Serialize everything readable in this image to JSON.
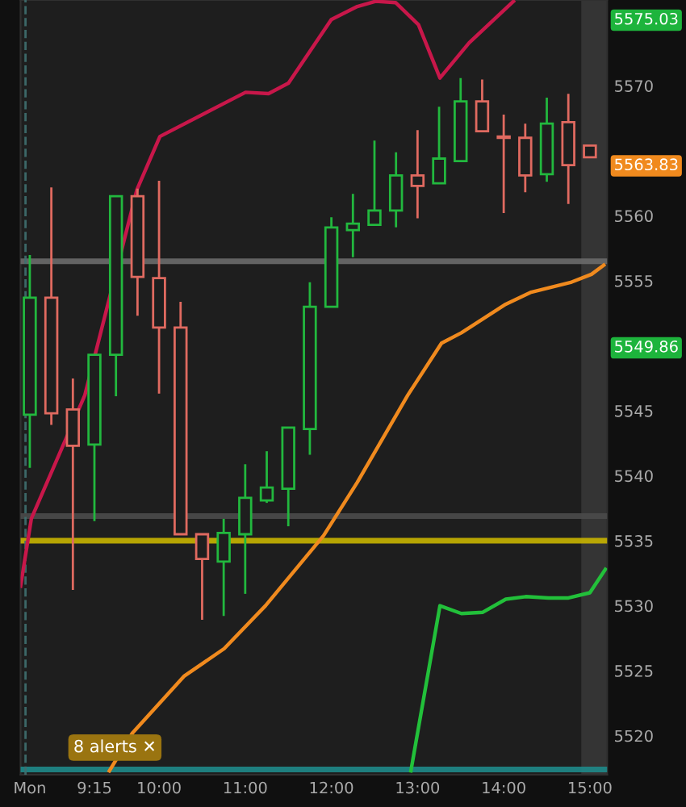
{
  "chart_data": {
    "type": "candlestick",
    "x": [
      8.5,
      8.75,
      9.0,
      9.25,
      9.5,
      9.75,
      10.0,
      10.25,
      10.5,
      10.75,
      11.0,
      11.25,
      11.5,
      11.75,
      12.0,
      12.25,
      12.5,
      12.75,
      13.0,
      13.25,
      13.5,
      13.75,
      14.0,
      14.25,
      14.5,
      14.75,
      15.0
    ],
    "ohlc": [
      [
        5544.7,
        5556.9,
        5540.7,
        5553.7
      ],
      [
        5553.7,
        5562.1,
        5544.0,
        5544.8
      ],
      [
        5545.1,
        5547.4,
        5531.3,
        5542.3
      ],
      [
        5542.4,
        5549.3,
        5536.6,
        5549.3
      ],
      [
        5549.3,
        5561.5,
        5546.2,
        5561.5
      ],
      [
        5561.5,
        5562.0,
        5552.4,
        5555.3
      ],
      [
        5555.2,
        5562.6,
        5546.4,
        5551.4
      ],
      [
        5551.4,
        5553.3,
        5535.5,
        5535.5
      ],
      [
        5535.5,
        5535.5,
        5529.0,
        5533.6
      ],
      [
        5533.4,
        5536.6,
        5529.3,
        5535.6
      ],
      [
        5535.5,
        5540.8,
        5531.0,
        5538.3
      ],
      [
        5538.1,
        5541.8,
        5538.0,
        5539.1
      ],
      [
        5539.0,
        5543.7,
        5536.2,
        5543.7
      ],
      [
        5543.6,
        5554.8,
        5541.7,
        5553.0
      ],
      [
        5553.0,
        5559.8,
        5553.0,
        5559.1
      ],
      [
        5558.9,
        5561.6,
        5556.9,
        5559.4
      ],
      [
        5559.3,
        5565.7,
        5559.3,
        5560.4
      ],
      [
        5560.4,
        5564.8,
        5559.2,
        5563.1
      ],
      [
        5563.1,
        5566.5,
        5559.9,
        5562.3
      ],
      [
        5562.5,
        5568.3,
        5562.5,
        5564.4
      ],
      [
        5564.2,
        5570.5,
        5564.2,
        5568.8
      ],
      [
        5568.8,
        5570.4,
        5566.5,
        5566.5
      ],
      [
        5566.1,
        5567.7,
        5560.3,
        5566.0
      ],
      [
        5566.0,
        5567.0,
        5561.9,
        5563.1
      ],
      [
        5563.2,
        5569.0,
        5562.7,
        5567.1
      ],
      [
        5567.2,
        5569.3,
        5561.0,
        5563.9
      ],
      [
        5565.4,
        5565.4,
        5564.5,
        5564.5
      ]
    ],
    "colors": [
      "#22b83e",
      "#e06a60",
      "#e06a60",
      "#22b83e",
      "#22b83e",
      "#e06a60",
      "#e06a60",
      "#e06a60",
      "#e06a60",
      "#22b83e",
      "#22b83e",
      "#22b83e",
      "#22b83e",
      "#22b83e",
      "#22b83e",
      "#22b83e",
      "#22b83e",
      "#22b83e",
      "#e06a60",
      "#22b83e",
      "#22b83e",
      "#e06a60",
      "#e06a60",
      "#e06a60",
      "#22b83e",
      "#e06a60",
      "#e06a60"
    ],
    "series": [
      {
        "type": "line",
        "color": "#c8174a",
        "x": [
          8.393,
          8.518,
          9.139,
          9.743,
          10.01,
          11.004,
          11.271,
          11.502,
          11.999,
          12.301,
          12.514,
          12.745,
          13.011,
          13.26,
          13.598,
          14.113
        ],
        "values": [
          5531.5,
          5536.7,
          5546.2,
          5562.0,
          5566.1,
          5569.5,
          5569.4,
          5570.2,
          5575.1,
          5576.1,
          5576.5,
          5576.4,
          5574.7,
          5570.6,
          5573.3,
          5576.5
        ]
      },
      {
        "type": "line",
        "color": "#f08a1e",
        "x": [
          9.424,
          9.69,
          10.294,
          10.756,
          11.235,
          11.91,
          12.301,
          12.887,
          13.278,
          13.509,
          14.024,
          14.309,
          14.788,
          15.019,
          15.161
        ],
        "values": [
          5517.3,
          5520.2,
          5524.6,
          5526.7,
          5530.0,
          5535.4,
          5539.5,
          5546.2,
          5550.2,
          5551.0,
          5553.2,
          5554.1,
          5554.9,
          5555.5,
          5556.2
        ]
      },
      {
        "type": "line",
        "color": "#22c03a",
        "x": [
          12.923,
          13.26,
          13.509,
          13.758,
          14.024,
          14.255,
          14.521,
          14.752,
          15.0,
          15.179
        ],
        "values": [
          5517.3,
          5530.0,
          5529.4,
          5529.5,
          5530.5,
          5530.7,
          5530.6,
          5530.6,
          5531.0,
          5532.8
        ]
      }
    ],
    "ref_lines": [
      {
        "axis": "y",
        "value": 5535,
        "color": "#c8b400"
      },
      {
        "axis": "y",
        "value": 5556.5,
        "color": "#6a6a6a"
      },
      {
        "axis": "y",
        "value": 5536.9,
        "color": "#4a4a4a"
      },
      {
        "axis": "y",
        "value": 5517.4,
        "color": "#1e8a8a"
      },
      {
        "axis": "x",
        "value": 8.45,
        "color": "#3f6f6f",
        "line_style": "dashed"
      }
    ],
    "bands": [
      {
        "axis": "x",
        "from": 14.9,
        "to": 15.2,
        "color": "#3a3a3a"
      }
    ],
    "annotations": [
      "5575.03",
      "5563.83",
      "5549.86",
      "8 alerts ✕"
    ],
    "xlim": [
      8.393,
      15.2
    ],
    "ylim": [
      5517.0,
      5576.6
    ],
    "xticks": [
      {
        "value": 8.5,
        "label": "Mon"
      },
      {
        "value": 9.25,
        "label": "9:15"
      },
      {
        "value": 10,
        "label": "10:00"
      },
      {
        "value": 11,
        "label": "11:00"
      },
      {
        "value": 12,
        "label": "12:00"
      },
      {
        "value": 13,
        "label": "13:00"
      },
      {
        "value": 14,
        "label": "14:00"
      },
      {
        "value": 15,
        "label": "15:00"
      }
    ],
    "yticks": [
      5520,
      5525,
      5530,
      5535,
      5540,
      5545,
      5555,
      5560,
      5570
    ],
    "grid": false,
    "legend": false
  }
}
